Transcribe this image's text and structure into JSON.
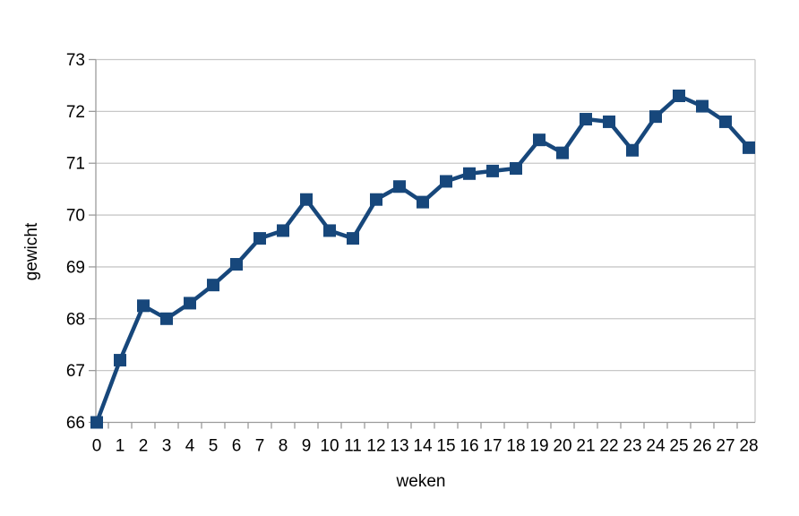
{
  "chart_data": {
    "type": "line",
    "xlabel": "weken",
    "ylabel": "gewicht",
    "x": [
      0,
      1,
      2,
      3,
      4,
      5,
      6,
      7,
      8,
      9,
      10,
      11,
      12,
      13,
      14,
      15,
      16,
      17,
      18,
      19,
      20,
      21,
      22,
      23,
      24,
      25,
      26,
      27,
      28
    ],
    "series": [
      {
        "name": "gewicht",
        "values": [
          66.0,
          67.2,
          68.25,
          68.0,
          68.3,
          68.65,
          69.05,
          69.55,
          69.7,
          70.3,
          69.7,
          69.55,
          70.3,
          70.55,
          70.25,
          70.65,
          70.8,
          70.85,
          70.9,
          71.45,
          71.2,
          71.85,
          71.8,
          71.25,
          71.9,
          72.3,
          72.1,
          71.8,
          71.3
        ]
      }
    ],
    "ylim": [
      66,
      73
    ],
    "yticks": [
      66,
      67,
      68,
      69,
      70,
      71,
      72,
      73
    ],
    "grid": "horizontal-on",
    "legend": "none",
    "marker": "square",
    "colors": {
      "line": "#17477b",
      "marker": "#17477b",
      "gridline": "#c8c8c8",
      "axis": "#9b9b9b",
      "text": "#000000",
      "background": "#ffffff"
    }
  }
}
